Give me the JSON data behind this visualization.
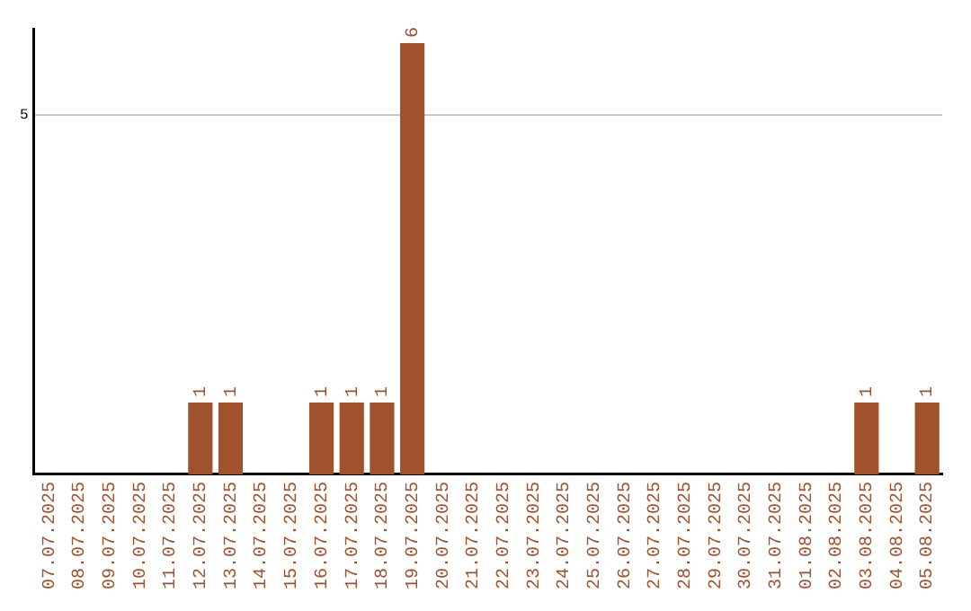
{
  "chart_data": {
    "type": "bar",
    "categories": [
      "07.07.2025",
      "08.07.2025",
      "09.07.2025",
      "10.07.2025",
      "11.07.2025",
      "12.07.2025",
      "13.07.2025",
      "14.07.2025",
      "15.07.2025",
      "16.07.2025",
      "17.07.2025",
      "18.07.2025",
      "19.07.2025",
      "20.07.2025",
      "21.07.2025",
      "22.07.2025",
      "23.07.2025",
      "24.07.2025",
      "25.07.2025",
      "26.07.2025",
      "27.07.2025",
      "28.07.2025",
      "29.07.2025",
      "30.07.2025",
      "31.07.2025",
      "01.08.2025",
      "02.08.2025",
      "03.08.2025",
      "04.08.2025",
      "05.08.2025"
    ],
    "values": [
      0,
      0,
      0,
      0,
      0,
      1,
      1,
      0,
      0,
      1,
      1,
      1,
      6,
      0,
      0,
      0,
      0,
      0,
      0,
      0,
      0,
      0,
      0,
      0,
      0,
      0,
      0,
      1,
      0,
      1
    ],
    "value_labels": [
      null,
      null,
      null,
      null,
      null,
      "1",
      "1",
      null,
      null,
      "1",
      "1",
      "1",
      "6",
      null,
      null,
      null,
      null,
      null,
      null,
      null,
      null,
      null,
      null,
      null,
      null,
      null,
      null,
      "1",
      null,
      "1"
    ],
    "color": "#a0522d",
    "ylim": [
      0,
      6.2
    ],
    "yticks": [
      5
    ],
    "grid": "y",
    "legend": false
  }
}
